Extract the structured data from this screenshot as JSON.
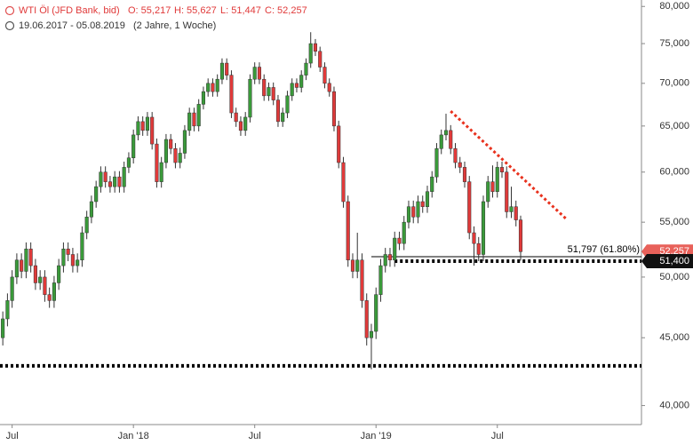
{
  "chart_data": {
    "type": "candlestick",
    "header": {
      "title": "WTI Öl (JFD Bank, bid)",
      "ohlc": [
        "O: 55,217",
        "H: 55,627",
        "L: 51,447",
        "C: 52,257"
      ],
      "range": "19.06.2017 - 05.08.2019",
      "period": "(2 Jahre, 1 Woche)"
    },
    "up_color": "#3a9a3a",
    "down_color": "#e03a3a",
    "log_scale": true,
    "xlim": [
      -0.6,
      136.9
    ],
    "xticks": [
      {
        "value": 2,
        "label": "Jul"
      },
      {
        "value": 28,
        "label": "Jan '18"
      },
      {
        "value": 54,
        "label": "Jul"
      },
      {
        "value": 80,
        "label": "Jan '19"
      },
      {
        "value": 106,
        "label": "Jul"
      }
    ],
    "ylim": [
      38700,
      80900
    ],
    "yticks": [
      {
        "value": 40000,
        "label": "40,000"
      },
      {
        "value": 45000,
        "label": "45,000"
      },
      {
        "value": 50000,
        "label": "50,000"
      },
      {
        "value": 55000,
        "label": "55,000"
      },
      {
        "value": 60000,
        "label": "60,000"
      },
      {
        "value": 65000,
        "label": "65,000"
      },
      {
        "value": 70000,
        "label": "70,000"
      },
      {
        "value": 75000,
        "label": "75,000"
      },
      {
        "value": 80000,
        "label": "80,000"
      }
    ],
    "open": [
      45000,
      46500,
      48000,
      50000,
      51500,
      50500,
      52500,
      51000,
      49500,
      50000,
      48500,
      48000,
      49500,
      51000,
      52500,
      52000,
      51000,
      51500,
      54000,
      55500,
      57000,
      58500,
      60000,
      59000,
      58500,
      59500,
      58500,
      60500,
      61500,
      64000,
      65500,
      64500,
      66000,
      63000,
      59000,
      61000,
      63500,
      62500,
      61000,
      62000,
      64500,
      66500,
      65000,
      67500,
      69000,
      70000,
      69000,
      70500,
      72500,
      71000,
      66500,
      65500,
      64500,
      66000,
      70500,
      72000,
      70500,
      68500,
      69500,
      68000,
      65500,
      66500,
      68500,
      70000,
      69500,
      71000,
      72500,
      75000,
      74000,
      72000,
      70000,
      69000,
      65000,
      61000,
      57000,
      51500,
      50500,
      51500,
      48000,
      45000,
      45500,
      48500,
      51000,
      52000,
      51500,
      53500,
      53000,
      55000,
      56500,
      55500,
      57000,
      56500,
      58000,
      59500,
      62500,
      64000,
      64500,
      62500,
      61000,
      60500,
      59000,
      54000,
      53000,
      52000,
      57000,
      59000,
      58000,
      60500,
      60000,
      56000,
      56500,
      55217
    ],
    "high": [
      47100,
      48600,
      50600,
      52100,
      52100,
      53100,
      53100,
      51600,
      50600,
      50600,
      49100,
      50100,
      51600,
      53100,
      53100,
      52600,
      52100,
      54600,
      56100,
      57600,
      59100,
      60600,
      60600,
      59600,
      60100,
      60100,
      61100,
      62100,
      64600,
      66100,
      66100,
      66600,
      66600,
      63600,
      61600,
      64100,
      64100,
      63100,
      62600,
      65100,
      67100,
      67100,
      68100,
      69600,
      70600,
      70600,
      71100,
      73100,
      73100,
      71600,
      67100,
      66100,
      66600,
      71100,
      72600,
      72600,
      71100,
      70100,
      70100,
      68600,
      67100,
      69100,
      70600,
      70600,
      71600,
      73100,
      76500,
      75600,
      74600,
      72600,
      70600,
      69600,
      65600,
      61600,
      57600,
      52100,
      54000,
      52100,
      48600,
      46100,
      49100,
      51600,
      52600,
      52600,
      54100,
      54100,
      55600,
      57100,
      57100,
      57600,
      57600,
      58600,
      60100,
      63100,
      64600,
      66400,
      65100,
      63100,
      61600,
      61100,
      59600,
      54600,
      53600,
      57600,
      59600,
      60700,
      61100,
      61100,
      60600,
      58500,
      57100,
      55627
    ],
    "low": [
      44400,
      45900,
      47400,
      49400,
      49900,
      49900,
      50400,
      48900,
      48900,
      47900,
      47400,
      47400,
      48900,
      50400,
      51400,
      50400,
      50400,
      50900,
      53400,
      54900,
      56400,
      57900,
      58400,
      57900,
      57900,
      57900,
      57900,
      59900,
      60900,
      63400,
      63900,
      63900,
      62400,
      58400,
      58400,
      60400,
      61900,
      60400,
      60400,
      61400,
      63900,
      64400,
      64400,
      66900,
      68400,
      68400,
      68400,
      69900,
      70400,
      65900,
      64900,
      63900,
      63900,
      65400,
      69900,
      69900,
      67900,
      67900,
      67400,
      64900,
      64900,
      65900,
      67900,
      68900,
      68900,
      70400,
      71900,
      73400,
      71400,
      69400,
      68400,
      64400,
      60400,
      56400,
      50900,
      49900,
      49900,
      47400,
      44400,
      42600,
      44900,
      47900,
      50400,
      50900,
      50900,
      52400,
      52400,
      54400,
      54900,
      54900,
      55900,
      55900,
      57400,
      58900,
      61900,
      63400,
      61900,
      60400,
      59900,
      58400,
      53400,
      51000,
      51400,
      51400,
      56400,
      57400,
      57400,
      59400,
      55400,
      55400,
      54600,
      51447
    ],
    "close": [
      46500,
      48000,
      50000,
      51500,
      50500,
      52500,
      51000,
      49500,
      50000,
      48500,
      48000,
      49500,
      51000,
      52500,
      52000,
      51000,
      51500,
      54000,
      55500,
      57000,
      58500,
      60000,
      59000,
      58500,
      59500,
      58500,
      60500,
      61500,
      64000,
      65500,
      64500,
      66000,
      63000,
      59000,
      61000,
      63500,
      62500,
      61000,
      62000,
      64500,
      66500,
      65000,
      67500,
      69000,
      70000,
      69000,
      70500,
      72500,
      71000,
      66500,
      65500,
      64500,
      66000,
      70500,
      72000,
      70500,
      68500,
      69500,
      68000,
      65500,
      66500,
      68500,
      70000,
      69500,
      71000,
      72500,
      75000,
      74000,
      72000,
      70000,
      69000,
      65000,
      61000,
      57000,
      51500,
      50500,
      51500,
      48000,
      45000,
      45500,
      48500,
      51000,
      52000,
      51500,
      53500,
      53000,
      55000,
      56500,
      55500,
      57000,
      56500,
      58000,
      59500,
      62500,
      64000,
      64500,
      62500,
      61000,
      60500,
      59000,
      54000,
      53000,
      52000,
      57000,
      59000,
      58000,
      60500,
      60000,
      56000,
      56500,
      55217,
      52257
    ],
    "fib_line": {
      "value": 51797,
      "label": "51,797 (61.80%)",
      "from": 79
    },
    "support_lines": [
      {
        "value": 51400,
        "from": 84
      },
      {
        "value": 42860,
        "from": -0.6
      }
    ],
    "trendline": {
      "x": [
        96,
        120.8
      ],
      "y": [
        66700,
        55300
      ],
      "color": "#e8321e"
    },
    "price_tags": [
      {
        "value": 52257,
        "label": "52,257",
        "color": "#e8615a"
      },
      {
        "value": 51400,
        "label": "51,400",
        "color": "#111111"
      }
    ]
  }
}
